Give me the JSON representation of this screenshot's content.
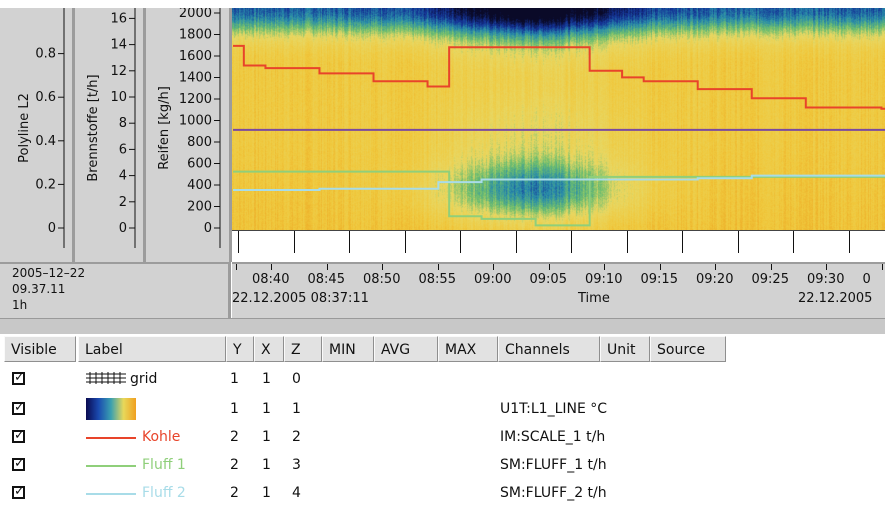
{
  "colors": {
    "kohle": "#e8442a",
    "fluff1": "#8fcf7a",
    "fluff2": "#a8dce8",
    "polyline": "#7a4aa0"
  },
  "left_axes": {
    "polyline": {
      "title": "Polyline L2",
      "ticks": [
        "0.8",
        "0.6",
        "0.4",
        "0.2",
        "0"
      ]
    },
    "brennstoffe": {
      "title": "Brennstoffe [t/h]",
      "ticks": [
        "16",
        "14",
        "12",
        "10",
        "8",
        "6",
        "4",
        "2",
        "0"
      ]
    },
    "reifen": {
      "title": "Reifen [kg/h]",
      "ticks": [
        "2000",
        "1800",
        "1600",
        "1400",
        "1200",
        "1000",
        "800",
        "600",
        "400",
        "200",
        "0"
      ]
    }
  },
  "time_panel": {
    "date": "2005–12–22",
    "time": "09.37.11",
    "span": "1h"
  },
  "time_axis": {
    "ticks": [
      "08:40",
      "08:45",
      "08:50",
      "08:55",
      "09:00",
      "09:05",
      "09:10",
      "09:15",
      "09:20",
      "09:25",
      "09:30",
      "0"
    ],
    "start": "22.12.2005 08:37:11",
    "label": "Time",
    "end": "22.12.2005"
  },
  "legend": {
    "headers": [
      "Visible",
      "Label",
      "Y",
      "X",
      "Z",
      "MIN",
      "AVG",
      "MAX",
      "Channels",
      "Unit",
      "Source"
    ],
    "rows": [
      {
        "visible": true,
        "label": "grid",
        "swatch": "grid",
        "y": "1",
        "x": "1",
        "z": "0",
        "channel": ""
      },
      {
        "visible": true,
        "label": "",
        "swatch": "colormap",
        "y": "1",
        "x": "1",
        "z": "1",
        "channel": "U1T:L1_LINE °C"
      },
      {
        "visible": true,
        "label": "Kohle",
        "swatch": "kohle",
        "y": "2",
        "x": "1",
        "z": "2",
        "channel": "IM:SCALE_1 t/h"
      },
      {
        "visible": true,
        "label": "Fluff 1",
        "swatch": "fluff1",
        "y": "2",
        "x": "1",
        "z": "3",
        "channel": "SM:FLUFF_1 t/h"
      },
      {
        "visible": true,
        "label": "Fluff 2",
        "swatch": "fluff2",
        "y": "2",
        "x": "1",
        "z": "4",
        "channel": "SM:FLUFF_2 t/h"
      }
    ]
  },
  "chart_data": {
    "type": "heatmap",
    "x_unit": "time",
    "x_range": [
      "08:37:11",
      "09:37:11"
    ],
    "y_axis_reifen_range": [
      0,
      2000
    ],
    "series": [
      {
        "name": "Kohle",
        "unit": "t/h",
        "x": [
          "08:37",
          "08:38",
          "08:40",
          "08:45",
          "08:50",
          "08:55",
          "08:57",
          "09:00",
          "09:05",
          "09:07",
          "09:10",
          "09:13",
          "09:15",
          "09:20",
          "09:25",
          "09:30",
          "09:37"
        ],
        "y": [
          13.9,
          12.4,
          12.2,
          11.8,
          11.2,
          10.8,
          13.8,
          13.8,
          13.8,
          13.8,
          12.0,
          11.5,
          11.2,
          10.6,
          9.9,
          9.2,
          9.1
        ]
      },
      {
        "name": "Fluff 1",
        "unit": "t/h",
        "x": [
          "08:37",
          "08:50",
          "08:56",
          "08:57",
          "09:00",
          "09:05",
          "09:09",
          "09:10",
          "09:37"
        ],
        "y": [
          4.3,
          4.3,
          4.3,
          0.9,
          0.7,
          0.2,
          0.2,
          3.9,
          3.9
        ]
      },
      {
        "name": "Fluff 2",
        "unit": "t/h",
        "x": [
          "08:37",
          "08:45",
          "08:56",
          "09:00",
          "09:10",
          "09:20",
          "09:25",
          "09:37"
        ],
        "y": [
          2.9,
          3.0,
          3.5,
          3.7,
          3.7,
          3.8,
          4.0,
          4.0
        ]
      },
      {
        "name": "Polyline L2",
        "x": [
          "08:37",
          "09:37"
        ],
        "y": [
          0.45,
          0.45
        ]
      }
    ],
    "colormap": [
      "#0a0a30",
      "#1a3a9a",
      "#2a8fb0",
      "#5ab870",
      "#e8d85a",
      "#f0a020"
    ],
    "grid": true
  }
}
